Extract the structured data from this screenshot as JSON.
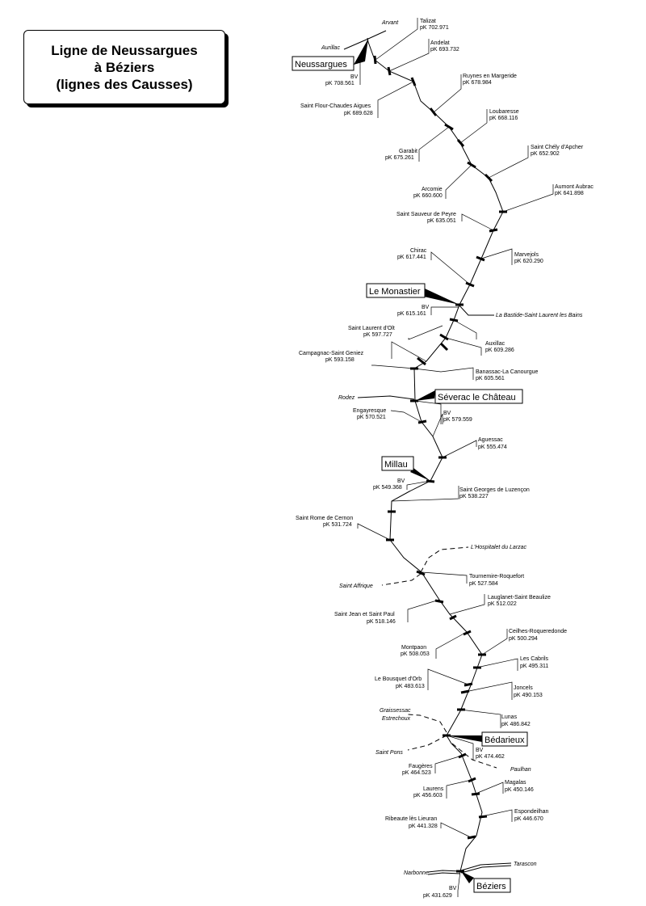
{
  "title": {
    "line1": "Ligne de Neussargues",
    "line2": "à Béziers",
    "line3": "(lignes des Causses)"
  },
  "stations": [
    {
      "id": "talizat",
      "name": "Talizat",
      "pk": "pK 702.971"
    },
    {
      "id": "andelat",
      "name": "Andelat",
      "pk": "pK 693.732"
    },
    {
      "id": "ruynes",
      "name": "Ruynes en Margeride",
      "pk": "pK 678.984"
    },
    {
      "id": "saint-flour",
      "name": "Saint Flour-Chaudes Aigues",
      "pk": "pK 689.628"
    },
    {
      "id": "loubaresse",
      "name": "Loubaresse",
      "pk": "pK 668.116"
    },
    {
      "id": "garabit",
      "name": "Garabit",
      "pk": "pK 675.261"
    },
    {
      "id": "saint-chely",
      "name": "Saint Chély d'Apcher",
      "pk": "pK 652.902"
    },
    {
      "id": "arcomie",
      "name": "Arcomie",
      "pk": "pK 660.600"
    },
    {
      "id": "aumont",
      "name": "Aumont Aubrac",
      "pk": "pK 641.898"
    },
    {
      "id": "saint-sauveur",
      "name": "Saint Sauveur de Peyre",
      "pk": "pK 635.051"
    },
    {
      "id": "chirac",
      "name": "Chirac",
      "pk": "pK 617.441"
    },
    {
      "id": "marvejols",
      "name": "Marvejols",
      "pk": "pK 620.290"
    },
    {
      "id": "saint-laurent-olt",
      "name": "Saint Laurent d'Olt",
      "pk": "pK 597.727"
    },
    {
      "id": "auxillac",
      "name": "Auxillac",
      "pk": "pK 609.286"
    },
    {
      "id": "campagnac",
      "name": "Campagnac-Saint Geniez",
      "pk": "pK 593.158"
    },
    {
      "id": "banassac",
      "name": "Banassac-La Canourgue",
      "pk": "pK 605.561"
    },
    {
      "id": "engayresque",
      "name": "Engayresque",
      "pk": "pK 570.521"
    },
    {
      "id": "aguessac",
      "name": "Aguessac",
      "pk": "pK 555.474"
    },
    {
      "id": "saint-georges",
      "name": "Saint Georges de Luzençon",
      "pk": "pK 538.227"
    },
    {
      "id": "saint-rome",
      "name": "Saint Rome de Cernon",
      "pk": "pK 531.724"
    },
    {
      "id": "tournemire",
      "name": "Tournemire-Roquefort",
      "pk": "pK 527.584"
    },
    {
      "id": "lauglanet",
      "name": "Lauglanet-Saint Beaulize",
      "pk": "pK 512.022"
    },
    {
      "id": "saint-jean",
      "name": "Saint Jean et Saint Paul",
      "pk": "pK 518.146"
    },
    {
      "id": "ceilhes",
      "name": "Ceilhes-Roqueredonde",
      "pk": "pK 500.294"
    },
    {
      "id": "montpaon",
      "name": "Montpaon",
      "pk": "pK 508.053"
    },
    {
      "id": "cabrils",
      "name": "Les Cabrils",
      "pk": "pK 495.311"
    },
    {
      "id": "bousquet",
      "name": "Le Bousquet d'Orb",
      "pk": "pK 483.613"
    },
    {
      "id": "joncels",
      "name": "Joncels",
      "pk": "pK 490.153"
    },
    {
      "id": "lunas",
      "name": "Lunas",
      "pk": "pK 486.842"
    },
    {
      "id": "faugeres",
      "name": "Faugères",
      "pk": "pK 464.523"
    },
    {
      "id": "laurens",
      "name": "Laurens",
      "pk": "pK 456.603"
    },
    {
      "id": "magalas",
      "name": "Magalas",
      "pk": "pK 450.146"
    },
    {
      "id": "espondeilhan",
      "name": "Espondeilhan",
      "pk": "pK 446.670"
    },
    {
      "id": "ribeaute",
      "name": "Ribeaute lès Lieuran",
      "pk": "pK 441.328"
    }
  ],
  "main_stations": [
    {
      "id": "neussargues",
      "name": "Neussargues",
      "bv": "BV",
      "pk": "pK 708.561"
    },
    {
      "id": "le-monastier",
      "name": "Le Monastier",
      "bv": "BV",
      "pk": "pK 615.161"
    },
    {
      "id": "severac",
      "name": "Séverac le Château",
      "bv": "BV",
      "pk": "pK 579.559"
    },
    {
      "id": "millau",
      "name": "Millau",
      "bv": "BV",
      "pk": "pK 549.368"
    },
    {
      "id": "bedarieux",
      "name": "Bédarieux",
      "bv": "BV",
      "pk": "pK 474.462"
    },
    {
      "id": "beziers",
      "name": "Béziers",
      "bv": "BV",
      "pk": "pK 431.629"
    }
  ],
  "directions": {
    "arvant": "Arvant",
    "aurillac": "Aurillac",
    "la-bastide": "La Bastide-Saint Laurent les Bains",
    "rodez": "Rodez",
    "hospitalet": "L'Hospitalet du Larzac",
    "saint-affrique": "Saint Affrique",
    "graissessac": "Graissessac",
    "estrechoux": "Estrechoux",
    "saint-pons": "Saint Pons",
    "paulhan": "Paulhan",
    "tarascon": "Tarascon",
    "narbonne": "Narbonne"
  }
}
